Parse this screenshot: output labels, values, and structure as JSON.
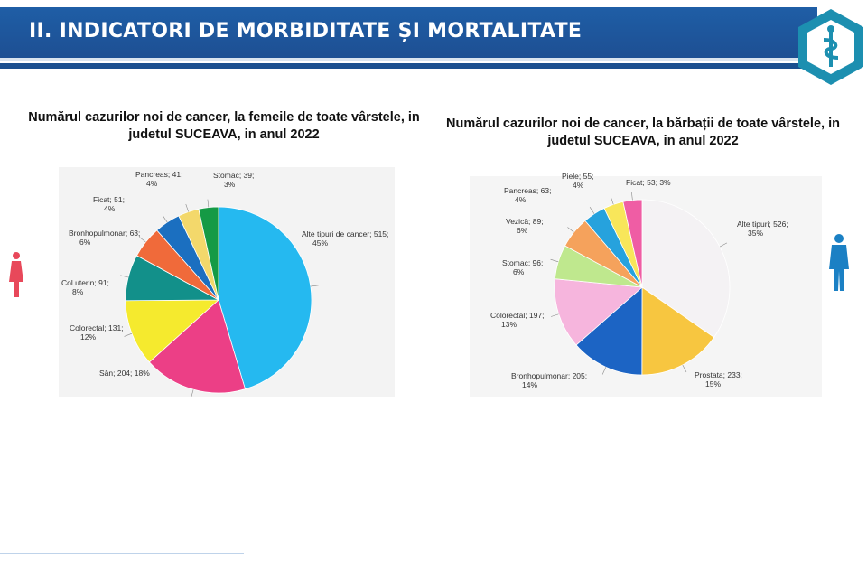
{
  "header": {
    "title": "II. INDICATORI DE MORBIDITATE ȘI MORTALITATE"
  },
  "colors": {
    "header_bg": "#1f5ea6",
    "logo": "#1c8fb0"
  },
  "chart_data": [
    {
      "type": "pie",
      "title": "Numărul cazurilor noi de cancer, la femeile de toate vârstele, in judetul SUCEAVA, in anul 2022",
      "categories": [
        "Alte tipuri de cancer",
        "Sân",
        "Colorectal",
        "Col uterin",
        "Bronhopulmonar",
        "Ficat",
        "Pancreas",
        "Stomac"
      ],
      "values": [
        515,
        204,
        131,
        91,
        63,
        51,
        41,
        39
      ],
      "percents": [
        "45%",
        "18%",
        "12%",
        "8%",
        "6%",
        "4%",
        "4%",
        "3%"
      ],
      "colors": [
        "#25b9f0",
        "#ec3f86",
        "#f5ea2e",
        "#12908a",
        "#f06a3a",
        "#1b6fc0",
        "#f3d86b",
        "#159a45"
      ],
      "labels": [
        "Alte tipuri de cancer; 515;",
        "Sân; 204; 18%",
        "Colorectal; 131;",
        "Col uterin; 91;",
        "Bronhopulmonar; 63;",
        "Ficat; 51;",
        "Pancreas; 41;",
        "Stomac; 39;"
      ]
    },
    {
      "type": "pie",
      "title": "Numărul cazurilor noi de cancer, la bărbații de toate vârstele, in judetul SUCEAVA, in anul 2022",
      "categories": [
        "Alte tipuri",
        "Prostata",
        "Bronhopulmonar",
        "Colorectal",
        "Stomac",
        "Vezică",
        "Pancreas",
        "Piele",
        "Ficat"
      ],
      "values": [
        526,
        233,
        205,
        197,
        96,
        89,
        63,
        55,
        53
      ],
      "percents": [
        "35%",
        "15%",
        "14%",
        "13%",
        "6%",
        "6%",
        "4%",
        "4%",
        "3%"
      ],
      "colors": [
        "#f4f2f4",
        "#f7c640",
        "#1c64c4",
        "#f6b5dd",
        "#bfe88e",
        "#f5a25c",
        "#26a2dd",
        "#f8e65a",
        "#ef5da4"
      ],
      "labels": [
        "Alte tipuri; 526;",
        "Prostata; 233;",
        "Bronhopulmonar; 205;",
        "Colorectal; 197;",
        "Stomac; 96;",
        "Vezică; 89;",
        "Pancreas; 63;",
        "Piele; 55;",
        "Ficat; 53; 3%"
      ]
    }
  ]
}
